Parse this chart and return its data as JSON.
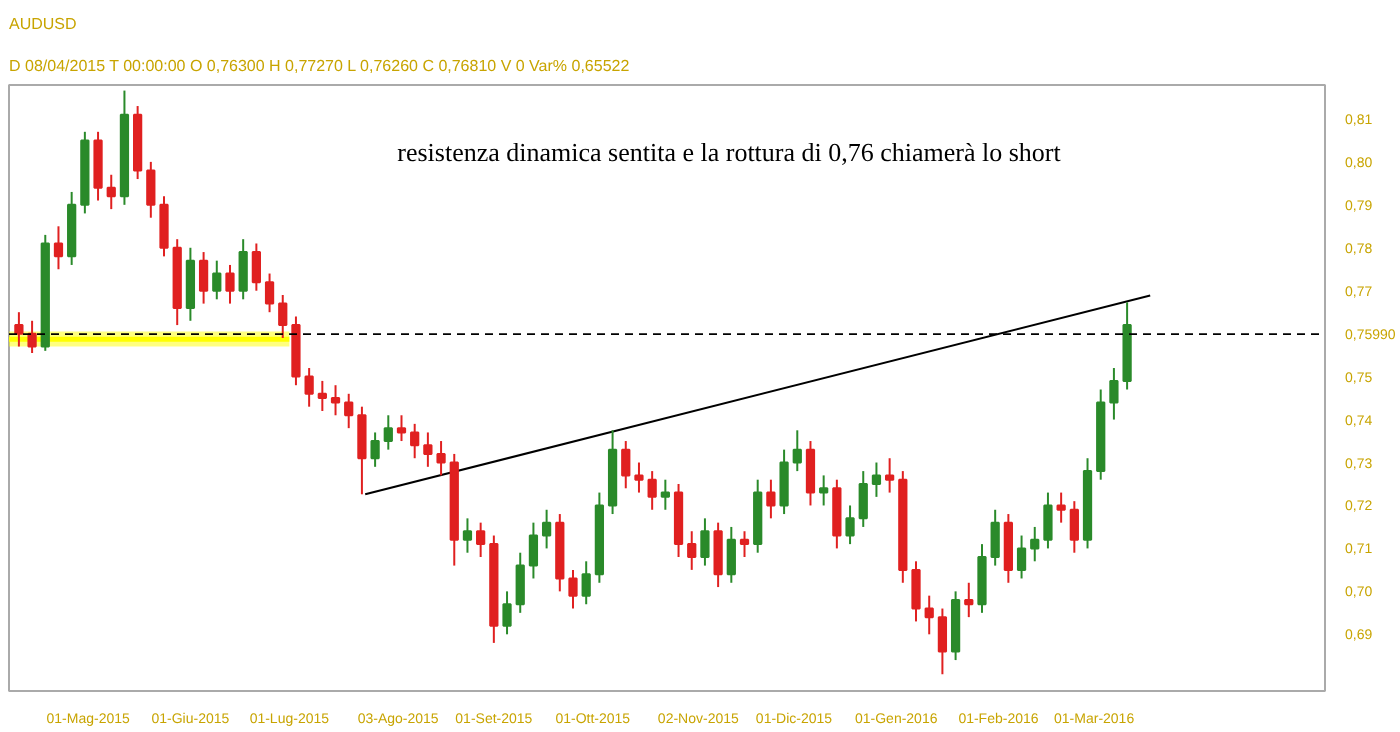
{
  "chart_data": {
    "type": "candlestick",
    "title": "AUDUSD",
    "annotations": [
      "D 08/04/2015  T 00:00:00  O 0,76300  H 0,77270  L 0,76260  C 0,76810  V 0  Var% 0,65522",
      "resistenza dinamica sentita e la rottura di 0,76 chiamerà lo short"
    ],
    "x": [
      "2015-04-10",
      "2015-04-14",
      "2015-04-18",
      "2015-04-22",
      "2015-04-26",
      "2015-04-30",
      "2015-05-04",
      "2015-05-08",
      "2015-05-12",
      "2015-05-16",
      "2015-05-20",
      "2015-05-24",
      "2015-05-28",
      "2015-06-01",
      "2015-06-05",
      "2015-06-09",
      "2015-06-13",
      "2015-06-17",
      "2015-06-21",
      "2015-06-25",
      "2015-06-29",
      "2015-07-03",
      "2015-07-07",
      "2015-07-11",
      "2015-07-15",
      "2015-07-19",
      "2015-07-23",
      "2015-07-27",
      "2015-07-31",
      "2015-08-04",
      "2015-08-08",
      "2015-08-12",
      "2015-08-16",
      "2015-08-20",
      "2015-08-24",
      "2015-08-28",
      "2015-09-01",
      "2015-09-05",
      "2015-09-09",
      "2015-09-13",
      "2015-09-17",
      "2015-09-21",
      "2015-09-25",
      "2015-09-29",
      "2015-10-03",
      "2015-10-07",
      "2015-10-11",
      "2015-10-15",
      "2015-10-19",
      "2015-10-23",
      "2015-10-27",
      "2015-10-31",
      "2015-11-04",
      "2015-11-08",
      "2015-11-12",
      "2015-11-16",
      "2015-11-20",
      "2015-11-24",
      "2015-11-28",
      "2015-12-02",
      "2015-12-06",
      "2015-12-10",
      "2015-12-14",
      "2015-12-18",
      "2015-12-22",
      "2015-12-26",
      "2015-12-30",
      "2016-01-03",
      "2016-01-07",
      "2016-01-11",
      "2016-01-15",
      "2016-01-19",
      "2016-01-23",
      "2016-01-27",
      "2016-01-31",
      "2016-02-04",
      "2016-02-08",
      "2016-02-12",
      "2016-02-16",
      "2016-02-20",
      "2016-02-24",
      "2016-02-28",
      "2016-03-03",
      "2016-03-07",
      "2016-03-11"
    ],
    "ohlc": [
      [
        0.762,
        0.765,
        0.757,
        0.76
      ],
      [
        0.76,
        0.763,
        0.7555,
        0.757
      ],
      [
        0.757,
        0.783,
        0.756,
        0.781
      ],
      [
        0.781,
        0.785,
        0.775,
        0.778
      ],
      [
        0.778,
        0.793,
        0.776,
        0.79
      ],
      [
        0.79,
        0.807,
        0.788,
        0.805
      ],
      [
        0.805,
        0.807,
        0.791,
        0.794
      ],
      [
        0.794,
        0.797,
        0.789,
        0.792
      ],
      [
        0.792,
        0.8166,
        0.79,
        0.811
      ],
      [
        0.811,
        0.813,
        0.796,
        0.798
      ],
      [
        0.798,
        0.8,
        0.787,
        0.79
      ],
      [
        0.79,
        0.792,
        0.778,
        0.78
      ],
      [
        0.78,
        0.782,
        0.762,
        0.766
      ],
      [
        0.766,
        0.78,
        0.763,
        0.777
      ],
      [
        0.777,
        0.779,
        0.767,
        0.77
      ],
      [
        0.77,
        0.777,
        0.768,
        0.774
      ],
      [
        0.774,
        0.776,
        0.767,
        0.77
      ],
      [
        0.77,
        0.782,
        0.768,
        0.779
      ],
      [
        0.779,
        0.781,
        0.77,
        0.772
      ],
      [
        0.772,
        0.774,
        0.765,
        0.767
      ],
      [
        0.767,
        0.769,
        0.759,
        0.762
      ],
      [
        0.762,
        0.764,
        0.748,
        0.75
      ],
      [
        0.75,
        0.752,
        0.743,
        0.746
      ],
      [
        0.746,
        0.749,
        0.742,
        0.745
      ],
      [
        0.745,
        0.748,
        0.741,
        0.744
      ],
      [
        0.744,
        0.746,
        0.738,
        0.741
      ],
      [
        0.741,
        0.743,
        0.7226,
        0.731
      ],
      [
        0.731,
        0.737,
        0.729,
        0.735
      ],
      [
        0.735,
        0.741,
        0.733,
        0.738
      ],
      [
        0.738,
        0.741,
        0.735,
        0.737
      ],
      [
        0.737,
        0.739,
        0.731,
        0.734
      ],
      [
        0.734,
        0.737,
        0.729,
        0.732
      ],
      [
        0.732,
        0.735,
        0.727,
        0.73
      ],
      [
        0.73,
        0.732,
        0.706,
        0.712
      ],
      [
        0.712,
        0.717,
        0.709,
        0.714
      ],
      [
        0.714,
        0.716,
        0.708,
        0.711
      ],
      [
        0.711,
        0.713,
        0.688,
        0.692
      ],
      [
        0.692,
        0.7,
        0.69,
        0.697
      ],
      [
        0.697,
        0.709,
        0.695,
        0.706
      ],
      [
        0.706,
        0.716,
        0.703,
        0.713
      ],
      [
        0.713,
        0.719,
        0.71,
        0.716
      ],
      [
        0.716,
        0.718,
        0.7,
        0.703
      ],
      [
        0.703,
        0.705,
        0.696,
        0.699
      ],
      [
        0.699,
        0.707,
        0.697,
        0.704
      ],
      [
        0.704,
        0.723,
        0.702,
        0.72
      ],
      [
        0.72,
        0.7375,
        0.718,
        0.733
      ],
      [
        0.733,
        0.735,
        0.724,
        0.727
      ],
      [
        0.727,
        0.73,
        0.723,
        0.726
      ],
      [
        0.726,
        0.728,
        0.719,
        0.722
      ],
      [
        0.722,
        0.726,
        0.719,
        0.723
      ],
      [
        0.723,
        0.725,
        0.708,
        0.711
      ],
      [
        0.711,
        0.714,
        0.705,
        0.708
      ],
      [
        0.708,
        0.717,
        0.706,
        0.714
      ],
      [
        0.714,
        0.716,
        0.701,
        0.704
      ],
      [
        0.704,
        0.715,
        0.702,
        0.712
      ],
      [
        0.712,
        0.714,
        0.708,
        0.711
      ],
      [
        0.711,
        0.726,
        0.709,
        0.723
      ],
      [
        0.723,
        0.726,
        0.717,
        0.72
      ],
      [
        0.72,
        0.733,
        0.718,
        0.73
      ],
      [
        0.73,
        0.7375,
        0.728,
        0.733
      ],
      [
        0.733,
        0.735,
        0.72,
        0.723
      ],
      [
        0.723,
        0.727,
        0.72,
        0.724
      ],
      [
        0.724,
        0.726,
        0.71,
        0.713
      ],
      [
        0.713,
        0.72,
        0.711,
        0.717
      ],
      [
        0.717,
        0.728,
        0.715,
        0.725
      ],
      [
        0.725,
        0.73,
        0.722,
        0.727
      ],
      [
        0.727,
        0.731,
        0.723,
        0.726
      ],
      [
        0.726,
        0.728,
        0.702,
        0.705
      ],
      [
        0.705,
        0.707,
        0.693,
        0.696
      ],
      [
        0.696,
        0.699,
        0.69,
        0.694
      ],
      [
        0.694,
        0.696,
        0.6807,
        0.686
      ],
      [
        0.686,
        0.7,
        0.684,
        0.698
      ],
      [
        0.698,
        0.702,
        0.694,
        0.697
      ],
      [
        0.697,
        0.711,
        0.695,
        0.708
      ],
      [
        0.708,
        0.719,
        0.706,
        0.716
      ],
      [
        0.716,
        0.718,
        0.702,
        0.705
      ],
      [
        0.705,
        0.713,
        0.703,
        0.71
      ],
      [
        0.71,
        0.715,
        0.707,
        0.712
      ],
      [
        0.712,
        0.723,
        0.71,
        0.72
      ],
      [
        0.72,
        0.723,
        0.716,
        0.719
      ],
      [
        0.719,
        0.721,
        0.709,
        0.712
      ],
      [
        0.712,
        0.731,
        0.71,
        0.728
      ],
      [
        0.728,
        0.747,
        0.726,
        0.744
      ],
      [
        0.744,
        0.752,
        0.74,
        0.749
      ],
      [
        0.749,
        0.7673,
        0.747,
        0.762
      ]
    ],
    "colors": [
      "#e02020",
      "#e02020",
      "#2a8a2a",
      "#e02020",
      "#2a8a2a",
      "#2a8a2a",
      "#e02020",
      "#e02020",
      "#2a8a2a",
      "#e02020",
      "#e02020",
      "#e02020",
      "#e02020",
      "#2a8a2a",
      "#e02020",
      "#2a8a2a",
      "#e02020",
      "#2a8a2a",
      "#e02020",
      "#e02020",
      "#e02020",
      "#e02020",
      "#e02020",
      "#e02020",
      "#e02020",
      "#e02020",
      "#e02020",
      "#2a8a2a",
      "#2a8a2a",
      "#e02020",
      "#e02020",
      "#e02020",
      "#e02020",
      "#e02020",
      "#2a8a2a",
      "#e02020",
      "#e02020",
      "#2a8a2a",
      "#2a8a2a",
      "#2a8a2a",
      "#2a8a2a",
      "#e02020",
      "#e02020",
      "#2a8a2a",
      "#2a8a2a",
      "#2a8a2a",
      "#e02020",
      "#e02020",
      "#e02020",
      "#2a8a2a",
      "#e02020",
      "#e02020",
      "#2a8a2a",
      "#e02020",
      "#2a8a2a",
      "#e02020",
      "#2a8a2a",
      "#e02020",
      "#2a8a2a",
      "#2a8a2a",
      "#e02020",
      "#2a8a2a",
      "#e02020",
      "#2a8a2a",
      "#2a8a2a",
      "#2a8a2a",
      "#e02020",
      "#e02020",
      "#e02020",
      "#e02020",
      "#e02020",
      "#2a8a2a",
      "#e02020",
      "#2a8a2a",
      "#2a8a2a",
      "#e02020",
      "#2a8a2a",
      "#2a8a2a",
      "#2a8a2a",
      "#e02020",
      "#e02020",
      "#2a8a2a",
      "#2a8a2a",
      "#2a8a2a",
      "#2a8a2a"
    ],
    "series": [
      {
        "type": "line",
        "x": [
          "2015-04-07",
          "2015-07-01"
        ],
        "values": [
          0.7587,
          0.7587
        ],
        "lower": [
          0.757,
          0.757
        ],
        "upper": [
          0.7605,
          0.7605
        ],
        "color": "#ffff00"
      },
      {
        "type": "line",
        "x": [
          "2015-07-24",
          "2016-03-18"
        ],
        "values": [
          0.7226,
          0.7689
        ],
        "color": "#000000"
      }
    ],
    "xlim": [
      "2015-04-07",
      "2016-05-10"
    ],
    "xticks": [
      {
        "value": "2015-05-01",
        "label": "01-Mag-2015"
      },
      {
        "value": "2015-06-01",
        "label": "01-Giu-2015"
      },
      {
        "value": "2015-07-01",
        "label": "01-Lug-2015"
      },
      {
        "value": "2015-08-03",
        "label": "03-Ago-2015"
      },
      {
        "value": "2015-09-01",
        "label": "01-Set-2015"
      },
      {
        "value": "2015-10-01",
        "label": "01-Ott-2015"
      },
      {
        "value": "2015-11-02",
        "label": "02-Nov-2015"
      },
      {
        "value": "2015-12-01",
        "label": "01-Dic-2015"
      },
      {
        "value": "2016-01-01",
        "label": "01-Gen-2016"
      },
      {
        "value": "2016-02-01",
        "label": "01-Feb-2016"
      },
      {
        "value": "2016-03-01",
        "label": "01-Mar-2016"
      }
    ],
    "ylim": [
      0.6768,
      0.8179
    ],
    "yticks": [
      {
        "value": 0.69,
        "label": "0,69"
      },
      {
        "value": 0.7,
        "label": "0,70"
      },
      {
        "value": 0.71,
        "label": "0,71"
      },
      {
        "value": 0.72,
        "label": "0,72"
      },
      {
        "value": 0.73,
        "label": "0,73"
      },
      {
        "value": 0.74,
        "label": "0,74"
      },
      {
        "value": 0.75,
        "label": "0,75"
      },
      {
        "value": 0.77,
        "label": "0,77"
      },
      {
        "value": 0.78,
        "label": "0,78"
      },
      {
        "value": 0.79,
        "label": "0,79"
      },
      {
        "value": 0.8,
        "label": "0,80"
      },
      {
        "value": 0.81,
        "label": "0,81"
      }
    ],
    "ref_lines": [
      {
        "axis": "y",
        "value": 0.7599,
        "label": "0,75990",
        "color": "#000000",
        "line_style": "dashed"
      }
    ]
  }
}
